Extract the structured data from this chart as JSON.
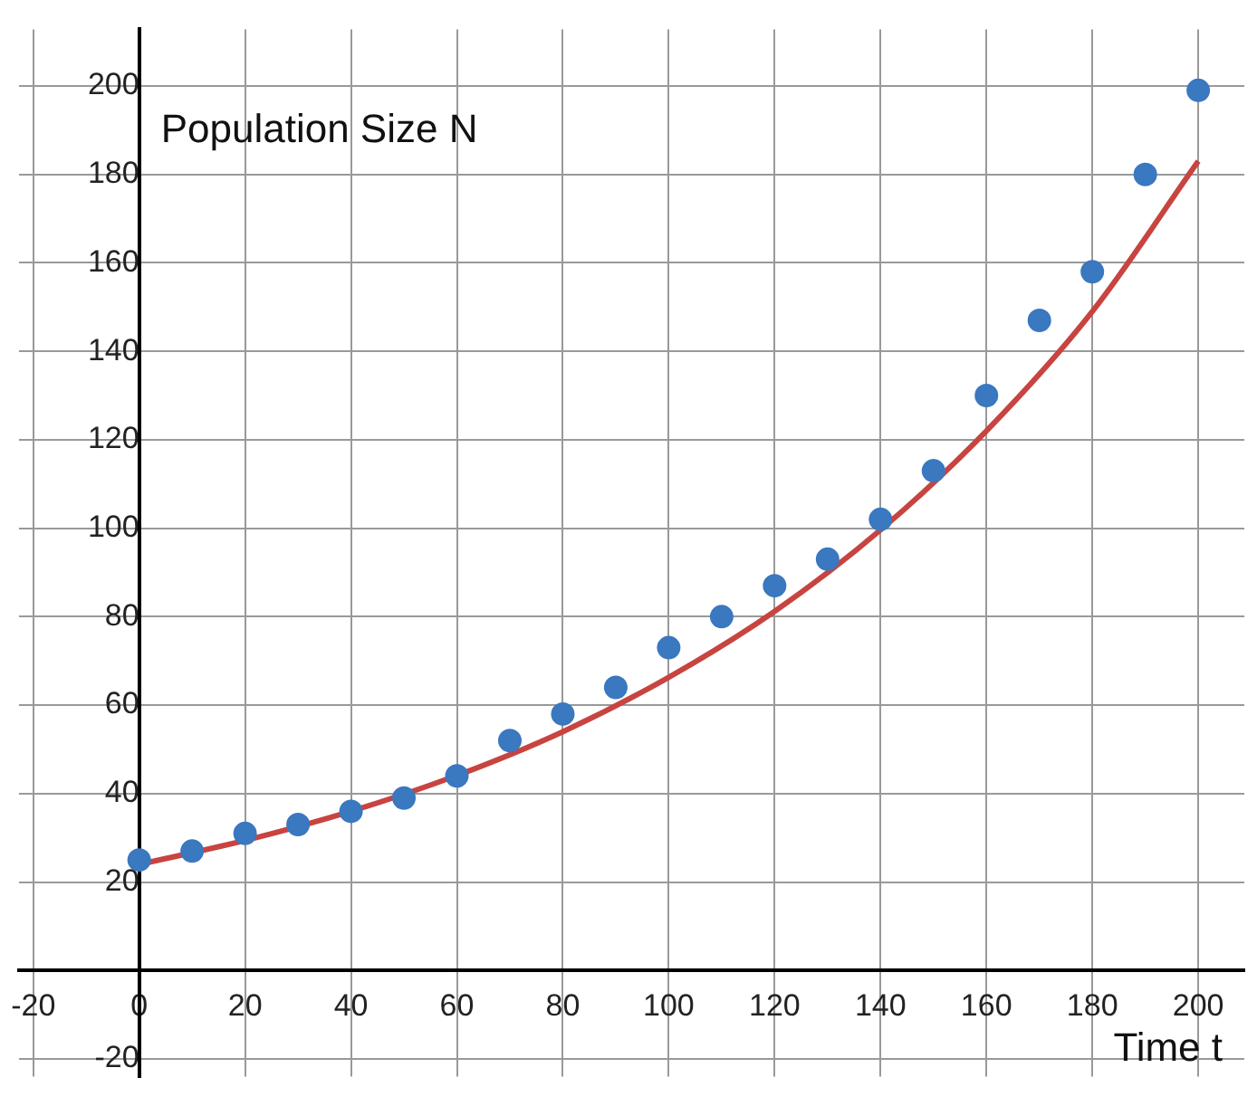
{
  "chart_data": {
    "type": "scatter",
    "xlabel": "Time t",
    "ylabel": "Population Size N",
    "xlim": [
      -22.7,
      208.7
    ],
    "ylim": [
      -24,
      212.8
    ],
    "xticks": [
      -20,
      0,
      20,
      40,
      60,
      80,
      100,
      120,
      140,
      160,
      180,
      200
    ],
    "yticks": [
      -20,
      {
        "value": 0,
        "label": null
      },
      20,
      40,
      60,
      80,
      100,
      120,
      140,
      160,
      180,
      200
    ],
    "grid": true,
    "legend": false,
    "series": [
      {
        "type": "scatter",
        "color": "#3a78c0",
        "marker": "circle",
        "x": [
          0,
          10,
          20,
          30,
          40,
          50,
          60,
          70,
          80,
          90,
          100,
          110,
          120,
          130,
          140,
          150,
          160,
          170,
          180,
          190,
          200
        ],
        "values": [
          25,
          27,
          31,
          33,
          36,
          39,
          44,
          52,
          58,
          64,
          73,
          80,
          87,
          93,
          102,
          113,
          130,
          147,
          158,
          180,
          199
        ]
      },
      {
        "type": "line",
        "color": "#c74440",
        "marker": "none",
        "line_style": "solid",
        "x": [
          0,
          20,
          40,
          60,
          80,
          100,
          120,
          140,
          160,
          180,
          200
        ],
        "values": [
          24,
          29.4,
          36,
          44.1,
          54,
          66.3,
          81.2,
          99.6,
          122,
          149,
          183
        ]
      }
    ]
  }
}
